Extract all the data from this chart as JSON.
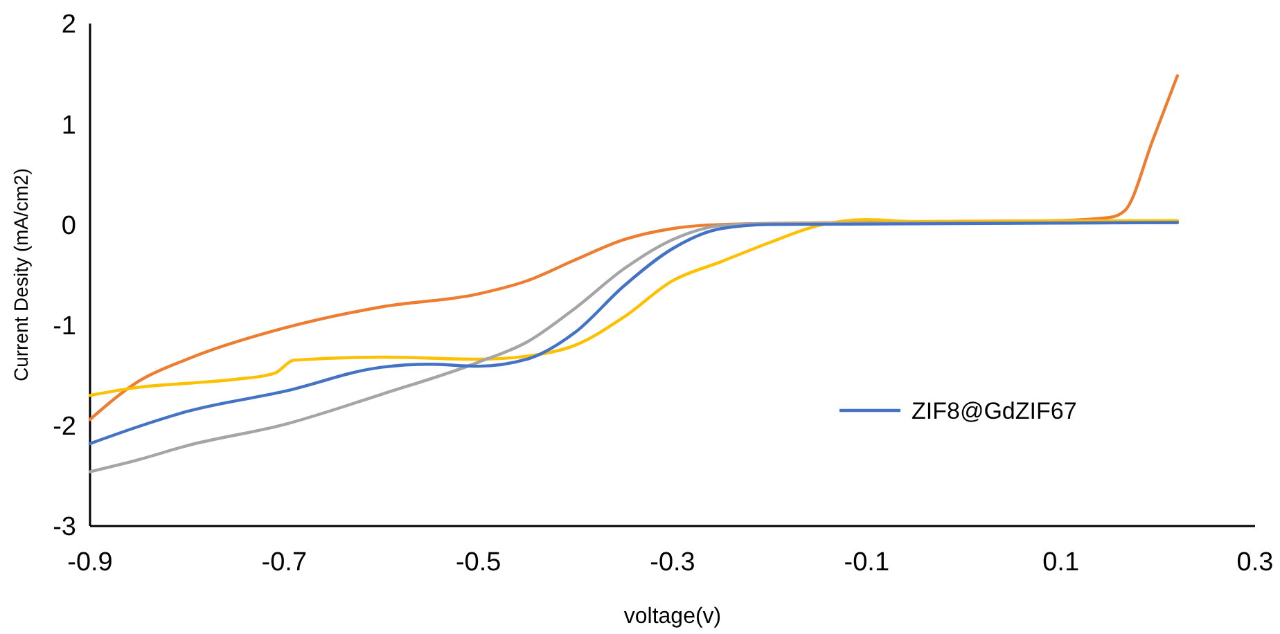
{
  "chart_data": {
    "type": "line",
    "xlabel": "voltage(v)",
    "ylabel": "Current Desity (mA/cm2)",
    "xlim": [
      -0.9,
      0.3
    ],
    "xticks": [
      -0.9,
      -0.7,
      -0.5,
      -0.3,
      -0.1,
      0.1,
      0.3
    ],
    "ylim": [
      -3,
      2
    ],
    "yticks": [
      -3,
      -2,
      -1,
      0,
      1,
      2
    ],
    "grid": false,
    "legend": "right",
    "marker": "none",
    "line_style": "solid",
    "series": [
      {
        "color": "#ed7d31",
        "x": [
          -0.9,
          -0.85,
          -0.8,
          -0.7,
          -0.6,
          -0.5,
          -0.45,
          -0.4,
          -0.35,
          -0.3,
          -0.25,
          -0.1,
          0,
          0.1,
          0.15,
          0.166,
          0.195,
          0.22
        ],
        "values": [
          -1.94,
          -1.56,
          -1.34,
          -1.03,
          -0.82,
          -0.69,
          -0.56,
          -0.35,
          -0.15,
          -0.04,
          0,
          0.02,
          0.03,
          0.04,
          0.07,
          0.14,
          0.85,
          1.48
        ]
      },
      {
        "color": "#ffc000",
        "x": [
          -0.9,
          -0.85,
          -0.8,
          -0.75,
          -0.71,
          -0.69,
          -0.6,
          -0.5,
          -0.45,
          -0.4,
          -0.35,
          -0.3,
          -0.25,
          -0.2,
          -0.15,
          -0.1,
          -0.05,
          0.22
        ],
        "values": [
          -1.7,
          -1.62,
          -1.58,
          -1.54,
          -1.48,
          -1.35,
          -1.32,
          -1.34,
          -1.31,
          -1.2,
          -0.92,
          -0.56,
          -0.37,
          -0.18,
          -0.01,
          0.05,
          0.03,
          0.04
        ]
      },
      {
        "color": "#a5a5a5",
        "x": [
          -0.9,
          -0.85,
          -0.8,
          -0.7,
          -0.6,
          -0.5,
          -0.45,
          -0.4,
          -0.35,
          -0.3,
          -0.25,
          -0.2,
          0.22
        ],
        "values": [
          -2.46,
          -2.34,
          -2.2,
          -1.99,
          -1.69,
          -1.37,
          -1.17,
          -0.83,
          -0.44,
          -0.15,
          -0.01,
          0.01,
          0.02
        ]
      },
      {
        "name": "ZIF8@GdZIF67",
        "color": "#4472c4",
        "x": [
          -0.9,
          -0.85,
          -0.8,
          -0.7,
          -0.6,
          -0.55,
          -0.5,
          -0.45,
          -0.4,
          -0.35,
          -0.3,
          -0.25,
          -0.2,
          0.22
        ],
        "values": [
          -2.18,
          -2.01,
          -1.86,
          -1.66,
          -1.42,
          -1.39,
          -1.41,
          -1.34,
          -1.07,
          -0.61,
          -0.24,
          -0.04,
          0,
          0.02
        ]
      }
    ]
  }
}
